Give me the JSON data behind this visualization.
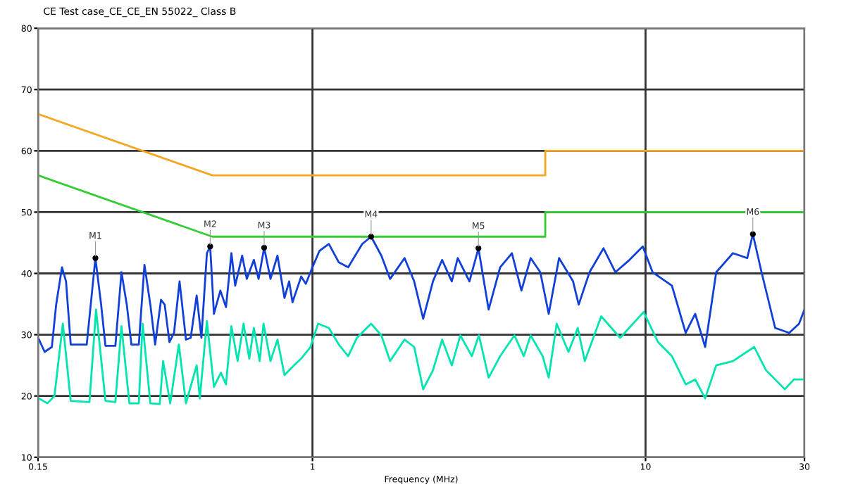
{
  "chart_data": {
    "type": "line",
    "title": "CE Test case_CE_CE_EN 55022_ Class B",
    "xlabel": "Frequency (MHz)",
    "log": "x",
    "xlim": [
      0.15,
      30
    ],
    "xticks": [
      0.15,
      1,
      10,
      30
    ],
    "ylim": [
      10,
      80
    ],
    "yticks": [
      10,
      20,
      30,
      40,
      50,
      60,
      70,
      80
    ],
    "grid": true,
    "marker": "none",
    "line_style": "solid",
    "series": [
      {
        "color": "#f5a623",
        "x": [
          0.15,
          0.5,
          5,
          5,
          30
        ],
        "values": [
          66,
          56,
          56,
          60,
          60
        ]
      },
      {
        "color": "#33cc33",
        "x": [
          0.15,
          0.5,
          5,
          5,
          30
        ],
        "values": [
          56,
          46,
          46,
          50,
          50
        ]
      },
      {
        "color": "#1040d8",
        "x": [
          0.151,
          0.157,
          0.165,
          0.17,
          0.177,
          0.182,
          0.188,
          0.21,
          0.223,
          0.232,
          0.239,
          0.256,
          0.267,
          0.277,
          0.286,
          0.301,
          0.313,
          0.326,
          0.337,
          0.351,
          0.36,
          0.372,
          0.384,
          0.399,
          0.417,
          0.431,
          0.449,
          0.464,
          0.482,
          0.493,
          0.506,
          0.529,
          0.55,
          0.571,
          0.586,
          0.615,
          0.635,
          0.667,
          0.689,
          0.716,
          0.748,
          0.785,
          0.824,
          0.851,
          0.871,
          0.925,
          0.955,
          1.0,
          1.05,
          1.12,
          1.2,
          1.28,
          1.41,
          1.5,
          1.61,
          1.71,
          1.89,
          2.02,
          2.15,
          2.3,
          2.45,
          2.62,
          2.73,
          2.96,
          3.15,
          3.38,
          3.66,
          3.97,
          4.24,
          4.52,
          4.83,
          5.12,
          5.5,
          6.06,
          6.3,
          6.79,
          7.48,
          8.12,
          8.95,
          9.81,
          10.5,
          12.0,
          13.2,
          14.1,
          15.1,
          16.3,
          18.3,
          20.2,
          21.0,
          22.3,
          24.5,
          27.0,
          28.9,
          30
        ],
        "values": [
          29.2,
          27.2,
          28.0,
          34.9,
          41.0,
          38.7,
          28.4,
          28.4,
          42.5,
          34.9,
          28.2,
          28.2,
          40.2,
          34.9,
          28.4,
          28.4,
          41.4,
          34.9,
          28.4,
          35.7,
          34.9,
          28.8,
          30.3,
          38.7,
          29.2,
          29.5,
          36.4,
          29.5,
          43.3,
          44.4,
          33.4,
          37.2,
          34.5,
          43.3,
          38.0,
          42.9,
          39.1,
          42.2,
          39.1,
          44.2,
          39.1,
          42.9,
          36.0,
          38.7,
          35.3,
          39.5,
          38.3,
          41.0,
          43.7,
          44.8,
          41.8,
          41.0,
          44.8,
          46.0,
          42.9,
          39.1,
          42.5,
          38.7,
          32.6,
          38.7,
          42.2,
          38.7,
          42.5,
          38.7,
          44.1,
          34.1,
          41.0,
          43.3,
          37.2,
          42.5,
          40.2,
          33.4,
          42.5,
          38.7,
          34.9,
          40.2,
          44.1,
          40.2,
          42.2,
          44.4,
          40.2,
          38.0,
          30.3,
          33.4,
          28.0,
          40.2,
          43.3,
          42.5,
          46.4,
          40.2,
          31.1,
          30.3,
          31.8,
          34.1
        ]
      },
      {
        "color": "#00e5b0",
        "x": [
          0.151,
          0.16,
          0.168,
          0.178,
          0.188,
          0.214,
          0.224,
          0.239,
          0.256,
          0.267,
          0.282,
          0.301,
          0.309,
          0.326,
          0.348,
          0.356,
          0.374,
          0.397,
          0.417,
          0.449,
          0.459,
          0.482,
          0.506,
          0.531,
          0.55,
          0.571,
          0.596,
          0.621,
          0.646,
          0.667,
          0.694,
          0.713,
          0.748,
          0.785,
          0.824,
          0.88,
          0.925,
          0.986,
          1.04,
          1.12,
          1.2,
          1.28,
          1.36,
          1.5,
          1.61,
          1.71,
          1.89,
          2.02,
          2.15,
          2.3,
          2.45,
          2.62,
          2.78,
          3.01,
          3.16,
          3.38,
          3.66,
          4.04,
          4.31,
          4.52,
          4.91,
          5.12,
          5.41,
          5.87,
          6.26,
          6.57,
          7.36,
          8.39,
          9.87,
          10.9,
          12.0,
          13.2,
          14.1,
          15.1,
          16.3,
          18.3,
          21.2,
          23.0,
          26.2,
          27.9,
          30
        ],
        "values": [
          19.6,
          18.8,
          20.0,
          31.8,
          19.2,
          19.0,
          34.1,
          19.2,
          19.0,
          31.4,
          18.8,
          18.8,
          31.8,
          18.8,
          18.7,
          25.7,
          18.8,
          28.4,
          18.8,
          25.0,
          19.6,
          32.2,
          21.5,
          23.8,
          21.9,
          31.4,
          25.7,
          31.8,
          26.1,
          31.1,
          25.7,
          31.8,
          25.7,
          29.2,
          23.4,
          25.0,
          26.1,
          28.0,
          31.8,
          31.1,
          28.4,
          26.5,
          29.5,
          31.8,
          29.9,
          25.7,
          29.2,
          28.0,
          21.1,
          24.2,
          29.2,
          25.0,
          29.9,
          26.5,
          29.9,
          23.0,
          26.5,
          29.9,
          26.5,
          29.9,
          26.5,
          23.0,
          31.8,
          27.2,
          31.1,
          25.7,
          33.0,
          29.5,
          33.7,
          28.8,
          26.5,
          21.9,
          22.7,
          19.6,
          25.0,
          25.7,
          28.0,
          24.2,
          21.1,
          22.7,
          22.7
        ]
      }
    ],
    "annotations": [
      {
        "text": "M1",
        "x": 0.223,
        "y": 42.5
      },
      {
        "text": "M2",
        "x": 0.493,
        "y": 44.4
      },
      {
        "text": "M3",
        "x": 0.716,
        "y": 44.2
      },
      {
        "text": "M4",
        "x": 1.5,
        "y": 46.0
      },
      {
        "text": "M5",
        "x": 3.15,
        "y": 44.1
      },
      {
        "text": "M6",
        "x": 21.0,
        "y": 46.4
      }
    ]
  }
}
